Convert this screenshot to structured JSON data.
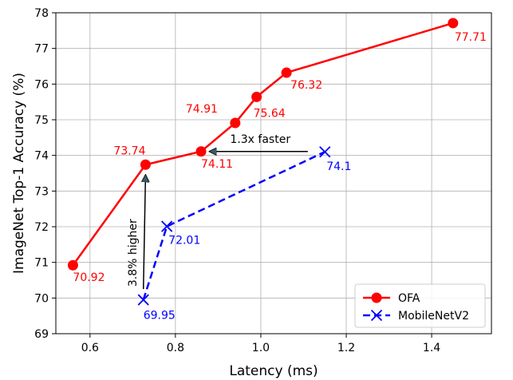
{
  "chart_data": {
    "type": "line",
    "title": "",
    "xlabel": "Latency (ms)",
    "ylabel": "ImageNet Top-1 Accuracy (%)",
    "xlim": [
      0.52,
      1.54
    ],
    "ylim": [
      69,
      78
    ],
    "xticks": [
      0.6,
      0.8,
      1.0,
      1.2,
      1.4
    ],
    "xtick_labels": [
      "0.6",
      "0.8",
      "1.0",
      "1.2",
      "1.4"
    ],
    "yticks": [
      69,
      70,
      71,
      72,
      73,
      74,
      75,
      76,
      77,
      78
    ],
    "ytick_labels": [
      "69",
      "70",
      "71",
      "72",
      "73",
      "74",
      "75",
      "76",
      "77",
      "78"
    ],
    "grid": true,
    "legend_position": "lower-right",
    "series": [
      {
        "name": "OFA",
        "color": "#ff0000",
        "marker": "circle",
        "linestyle": "solid",
        "x": [
          0.56,
          0.73,
          0.86,
          0.94,
          0.99,
          1.06,
          1.45
        ],
        "y": [
          70.92,
          73.74,
          74.11,
          74.91,
          75.64,
          76.32,
          77.71
        ],
        "labels": [
          "70.92",
          "73.74",
          "74.11",
          "74.91",
          "75.64",
          "76.32",
          "77.71"
        ]
      },
      {
        "name": "MobileNetV2",
        "color": "#0000ff",
        "marker": "x",
        "linestyle": "dashed",
        "x": [
          0.725,
          0.78,
          1.15
        ],
        "y": [
          69.95,
          72.01,
          74.1
        ],
        "labels": [
          "69.95",
          "72.01",
          "74.1"
        ]
      }
    ],
    "annotations": [
      {
        "text": "1.3x faster",
        "from": [
          1.11,
          74.11
        ],
        "to": [
          0.88,
          74.11
        ]
      },
      {
        "text": "3.8% higher",
        "from": [
          0.725,
          70.25
        ],
        "to": [
          0.73,
          73.45
        ]
      }
    ]
  }
}
